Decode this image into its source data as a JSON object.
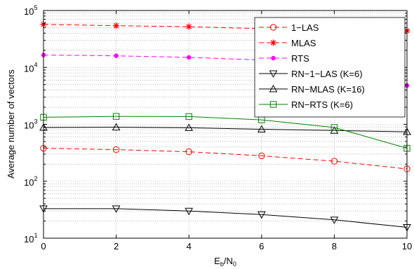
{
  "chart_data": {
    "type": "line",
    "title": "",
    "xlabel": {
      "main": "E",
      "sub1": "b",
      "mid": "/N",
      "sub2": "0"
    },
    "ylabel": "Average number of vectors",
    "xlim": [
      0,
      10
    ],
    "ylim": [
      10,
      100000
    ],
    "yscale": "log",
    "grid": true,
    "legend_position": "top-right",
    "x": [
      0,
      2,
      4,
      6,
      8,
      10
    ],
    "x_tick_labels": [
      "0",
      "2",
      "4",
      "6",
      "8",
      "10"
    ],
    "y_tick_labels": [
      {
        "base": "10",
        "exp": "1"
      },
      {
        "base": "10",
        "exp": "2"
      },
      {
        "base": "10",
        "exp": "3"
      },
      {
        "base": "10",
        "exp": "4"
      },
      {
        "base": "10",
        "exp": "5"
      }
    ],
    "series": [
      {
        "name": "1−LAS",
        "values": [
          380,
          360,
          330,
          280,
          225,
          165
        ],
        "color": "#ff0000",
        "dash": "dashed",
        "marker": "circle"
      },
      {
        "name": "MLAS",
        "values": [
          57000,
          54000,
          52000,
          48000,
          46000,
          44000
        ],
        "color": "#ff0000",
        "dash": "dashed",
        "marker": "star"
      },
      {
        "name": "RTS",
        "values": [
          16500,
          16000,
          15000,
          13500,
          10000,
          4800
        ],
        "color": "#ff00ff",
        "dash": "dashed",
        "marker": "dot"
      },
      {
        "name": "RN−1−LAS (K=6)",
        "values": [
          33,
          33,
          30,
          26,
          21,
          15.5
        ],
        "color": "#000000",
        "dash": "solid",
        "marker": "triangle-down"
      },
      {
        "name": "RN−MLAS (K=16)",
        "values": [
          880,
          890,
          870,
          820,
          780,
          740
        ],
        "color": "#000000",
        "dash": "solid",
        "marker": "triangle-up"
      },
      {
        "name": "RN−RTS (K=6)",
        "values": [
          1330,
          1380,
          1370,
          1200,
          880,
          380
        ],
        "color": "#008000",
        "dash": "solid",
        "marker": "square"
      }
    ]
  }
}
